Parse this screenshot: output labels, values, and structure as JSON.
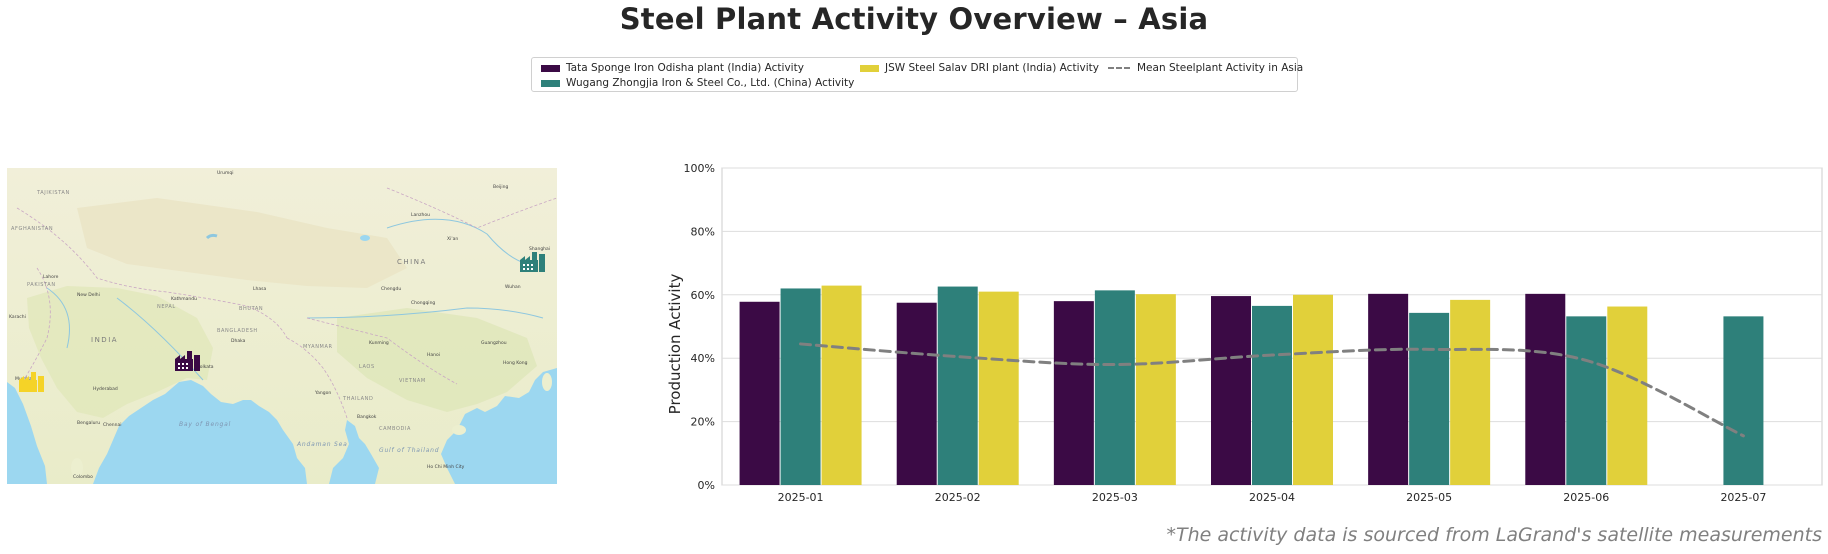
{
  "title": "Steel Plant Activity Overview – Asia",
  "source_note": "*The activity data is sourced from LaGrand's satellite measurements",
  "legend": [
    {
      "label": "Tata Sponge Iron Odisha plant (India) Activity",
      "color": "#3b0a45"
    },
    {
      "label": "Wugang Zhongjia Iron & Steel Co., Ltd. (China) Activity",
      "color": "#2e807a"
    },
    {
      "label": "JSW Steel Salav DRI plant (India) Activity",
      "color": "#e1d03a"
    },
    {
      "label": "Mean Steelplant Activity in Asia",
      "color": "#808080"
    }
  ],
  "map": {
    "labels": {
      "country_china": "CHINA",
      "country_india": "INDIA",
      "bay": "Bay of Bengal",
      "andaman": "Andaman Sea",
      "gulf": "Gulf of Thailand",
      "myanmar": "MYANMAR",
      "laos": "LAOS",
      "vietnam": "VIETNAM",
      "cambodia": "CAMBODIA",
      "thailand": "THAILAND",
      "nepal": "NEPAL",
      "bangladesh": "BANGLADESH",
      "bhutan": "BHUTAN",
      "pakistan": "PAKISTAN",
      "tajikistan": "TAJIKISTAN",
      "afghanistan": "AFGHANISTAN",
      "mumbai": "Mumbai",
      "kolkata": "Kolkata",
      "delhi": "New Delhi",
      "beijing": "Beijing",
      "chongqing": "Chongqing",
      "chengdu": "Chengdu",
      "kunming": "Kunming",
      "hanoi": "Hanoi",
      "bangkok": "Bangkok",
      "yangon": "Yangon",
      "dhaka": "Dhaka",
      "kathmandu": "Kathmandu",
      "lhasa": "Lhasa",
      "wuhan": "Wuhan",
      "guangzhou": "Guangzhou",
      "hyderabad": "Hyderabad",
      "chennai": "Chennai",
      "bengaluru": "Bengaluru",
      "karachi": "Karachi",
      "lahore": "Lahore",
      "xian": "Xi'an",
      "lanzhou": "Lanzhou",
      "shanghai": "Shanghai",
      "hongkong": "Hong Kong",
      "colombo": "Colombo",
      "hochiminh": "Ho Chi Minh City",
      "urumqi": "Urumqi"
    },
    "markers": [
      {
        "name": "Tata Sponge Iron Odisha plant",
        "color": "#3b0a45",
        "icon": "factory-icon"
      },
      {
        "name": "Wugang Zhongjia Iron & Steel Co., Ltd.",
        "color": "#2e807a",
        "icon": "factory-icon"
      },
      {
        "name": "JSW Steel Salav DRI plant",
        "color": "#f5d327",
        "icon": "factory-icon"
      }
    ]
  },
  "chart_data": {
    "type": "bar",
    "title": "",
    "xlabel": "",
    "ylabel": "Production Activity",
    "ylim": [
      0,
      100
    ],
    "yticks": [
      "0%",
      "20%",
      "40%",
      "60%",
      "80%",
      "100%"
    ],
    "categories": [
      "2025-01",
      "2025-02",
      "2025-03",
      "2025-04",
      "2025-05",
      "2025-06",
      "2025-07"
    ],
    "series": [
      {
        "name": "Tata Sponge Iron Odisha plant (India) Activity",
        "color": "#3b0a45",
        "values": [
          57.8,
          57.5,
          58.0,
          59.6,
          60.3,
          60.3,
          null
        ]
      },
      {
        "name": "Wugang Zhongjia Iron & Steel Co., Ltd. (China) Activity",
        "color": "#2e807a",
        "values": [
          62.0,
          62.6,
          61.4,
          56.5,
          54.3,
          53.2,
          53.2
        ]
      },
      {
        "name": "JSW Steel Salav DRI plant (India) Activity",
        "color": "#e1d03a",
        "values": [
          62.9,
          61.0,
          60.2,
          60.0,
          58.4,
          56.3,
          null
        ]
      }
    ],
    "line": {
      "name": "Mean Steelplant Activity in Asia",
      "color": "#808080",
      "values": [
        44.5,
        40.5,
        38.0,
        41.0,
        42.8,
        39.3,
        15.5
      ]
    },
    "grid": true
  }
}
